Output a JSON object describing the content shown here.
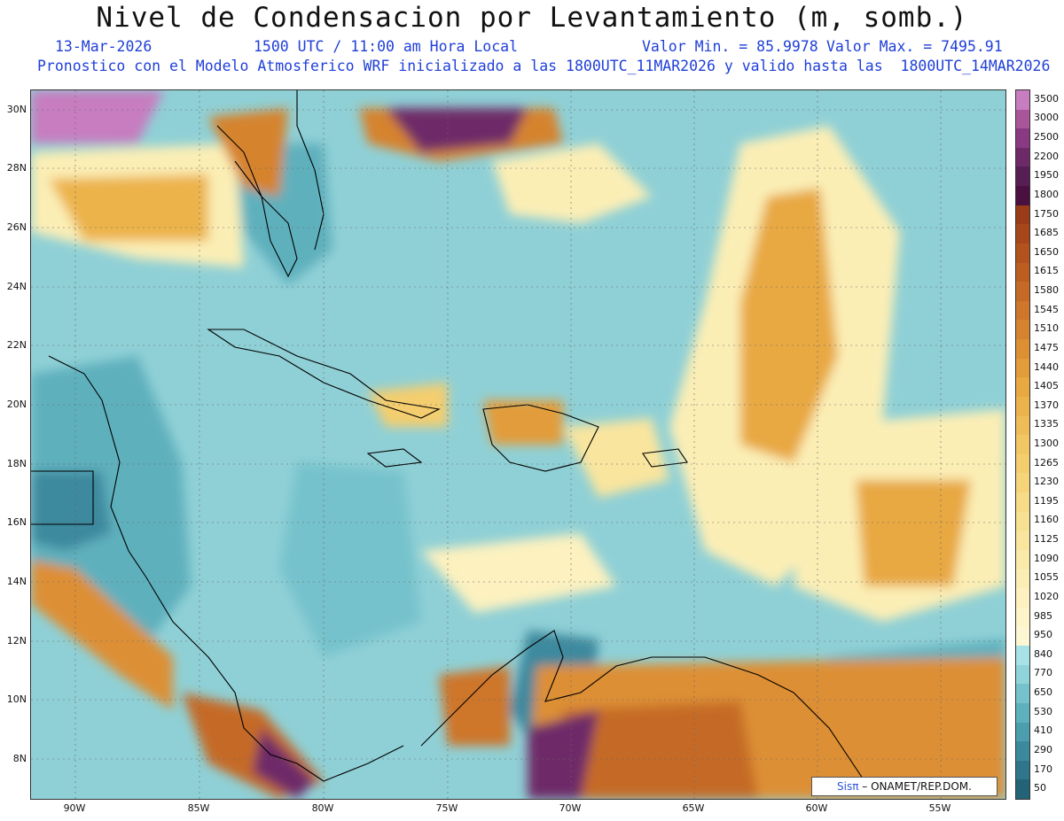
{
  "header": {
    "title": "Nivel de Condensacion por Levantamiento (m, somb.)",
    "date": "13-Mar-2026",
    "time": "1500 UTC / 11:00 am Hora Local",
    "valmin": "Valor Min. = 85.9978",
    "valmax": "Valor Max. = 7495.91",
    "subtitle": "Pronostico con el Modelo Atmosferico WRF inicializado a las 1800UTC_11MAR2026 y valido hasta las  1800UTC_14MAR2026"
  },
  "axes": {
    "lat_labels": [
      "30N",
      "28N",
      "26N",
      "24N",
      "22N",
      "20N",
      "18N",
      "16N",
      "14N",
      "12N",
      "10N",
      "8N"
    ],
    "lon_labels": [
      "90W",
      "85W",
      "80W",
      "75W",
      "70W",
      "65W",
      "60W",
      "55W"
    ]
  },
  "colorbar": {
    "labels": [
      "3500",
      "3000",
      "2500",
      "2200",
      "1950",
      "1800",
      "1750",
      "1685",
      "1650",
      "1615",
      "1580",
      "1545",
      "1510",
      "1475",
      "1440",
      "1405",
      "1370",
      "1335",
      "1300",
      "1265",
      "1230",
      "1195",
      "1160",
      "1125",
      "1090",
      "1055",
      "1020",
      "985",
      "950",
      "840",
      "770",
      "650",
      "530",
      "410",
      "290",
      "170",
      "50"
    ],
    "colors": [
      "#c77dc0",
      "#a8559a",
      "#8a3a82",
      "#6e2a68",
      "#561e52",
      "#4a1040",
      "#9a3c18",
      "#a6471b",
      "#b1521f",
      "#bc5e22",
      "#c56a26",
      "#ce762b",
      "#d6832f",
      "#dd8f34",
      "#e39c3a",
      "#e8a842",
      "#ecb34c",
      "#efbd57",
      "#f2c662",
      "#f4ce6e",
      "#f6d57a",
      "#f7db86",
      "#f8e092",
      "#f9e59e",
      "#faeaaa",
      "#fbeeb5",
      "#fcf1bf",
      "#fdf4c9",
      "#fdf6d2",
      "#a6e2e6",
      "#8fd4da",
      "#76c2cc",
      "#5fb0bd",
      "#4c9dae",
      "#3c899e",
      "#2f768c",
      "#236378"
    ]
  },
  "credit": {
    "brand": "Sisπ",
    "text": "– ONAMET/REP.DOM."
  },
  "map": {
    "background": "#8fd0d6",
    "land_color": "#6fbcc4"
  }
}
